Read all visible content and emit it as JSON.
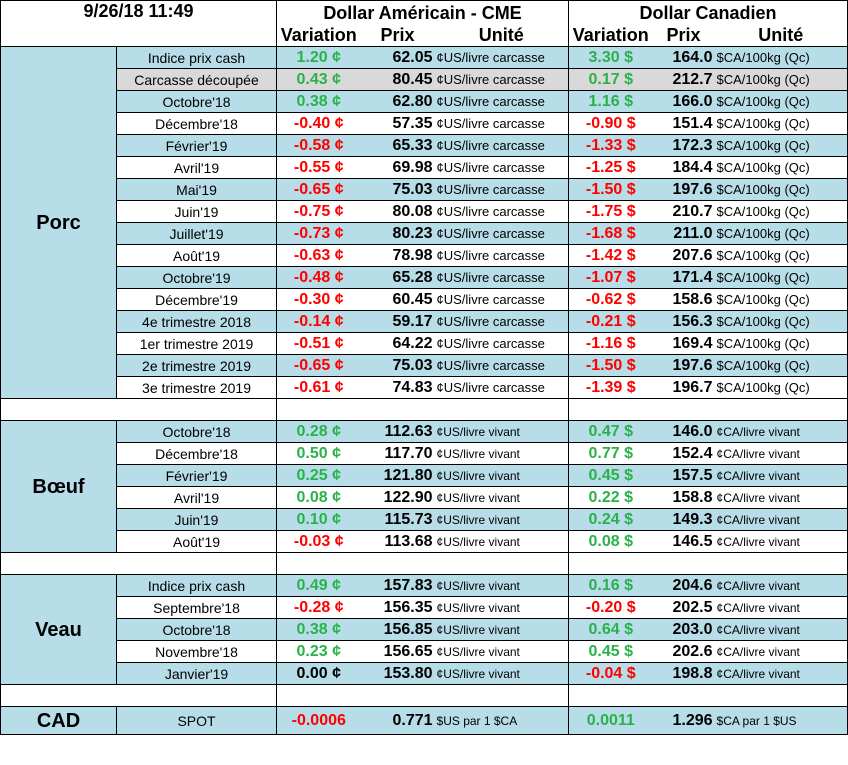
{
  "header": {
    "timestamp": "9/26/18 11:49",
    "usd_title": "Dollar Américain - CME",
    "cad_title": "Dollar Canadien",
    "col_variation": "Variation",
    "col_prix": "Prix",
    "col_unite": "Unité"
  },
  "colors": {
    "positive": "#2ab24a",
    "negative": "#ff0000",
    "stripe": "#b7dde8"
  },
  "sections": [
    {
      "name": "Porc",
      "rows": [
        {
          "label": "Indice prix cash",
          "usd_chg": "1.20 ¢",
          "usd_price": "62.05",
          "usd_unit": "¢US/livre carcasse",
          "cad_chg": "3.30 $",
          "cad_price": "164.0",
          "cad_unit": "$CA/100kg (Qc)"
        },
        {
          "label": "Carcasse découpée",
          "usd_chg": "0.43 ¢",
          "usd_price": "80.45",
          "usd_unit": "¢US/livre carcasse",
          "cad_chg": "0.17 $",
          "cad_price": "212.7",
          "cad_unit": "$CA/100kg (Qc)"
        },
        {
          "label": "Octobre'18",
          "usd_chg": "0.38 ¢",
          "usd_price": "62.80",
          "usd_unit": "¢US/livre carcasse",
          "cad_chg": "1.16 $",
          "cad_price": "166.0",
          "cad_unit": "$CA/100kg (Qc)"
        },
        {
          "label": "Décembre'18",
          "usd_chg": "-0.40 ¢",
          "usd_price": "57.35",
          "usd_unit": "¢US/livre carcasse",
          "cad_chg": "-0.90 $",
          "cad_price": "151.4",
          "cad_unit": "$CA/100kg (Qc)"
        },
        {
          "label": "Février'19",
          "usd_chg": "-0.58 ¢",
          "usd_price": "65.33",
          "usd_unit": "¢US/livre carcasse",
          "cad_chg": "-1.33 $",
          "cad_price": "172.3",
          "cad_unit": "$CA/100kg (Qc)"
        },
        {
          "label": "Avril'19",
          "usd_chg": "-0.55 ¢",
          "usd_price": "69.98",
          "usd_unit": "¢US/livre carcasse",
          "cad_chg": "-1.25 $",
          "cad_price": "184.4",
          "cad_unit": "$CA/100kg (Qc)"
        },
        {
          "label": "Mai'19",
          "usd_chg": "-0.65 ¢",
          "usd_price": "75.03",
          "usd_unit": "¢US/livre carcasse",
          "cad_chg": "-1.50 $",
          "cad_price": "197.6",
          "cad_unit": "$CA/100kg (Qc)"
        },
        {
          "label": "Juin'19",
          "usd_chg": "-0.75 ¢",
          "usd_price": "80.08",
          "usd_unit": "¢US/livre carcasse",
          "cad_chg": "-1.75 $",
          "cad_price": "210.7",
          "cad_unit": "$CA/100kg (Qc)"
        },
        {
          "label": "Juillet'19",
          "usd_chg": "-0.73 ¢",
          "usd_price": "80.23",
          "usd_unit": "¢US/livre carcasse",
          "cad_chg": "-1.68 $",
          "cad_price": "211.0",
          "cad_unit": "$CA/100kg (Qc)"
        },
        {
          "label": "Août'19",
          "usd_chg": "-0.63 ¢",
          "usd_price": "78.98",
          "usd_unit": "¢US/livre carcasse",
          "cad_chg": "-1.42 $",
          "cad_price": "207.6",
          "cad_unit": "$CA/100kg (Qc)"
        },
        {
          "label": "Octobre'19",
          "usd_chg": "-0.48 ¢",
          "usd_price": "65.28",
          "usd_unit": "¢US/livre carcasse",
          "cad_chg": "-1.07 $",
          "cad_price": "171.4",
          "cad_unit": "$CA/100kg (Qc)"
        },
        {
          "label": "Décembre'19",
          "usd_chg": "-0.30 ¢",
          "usd_price": "60.45",
          "usd_unit": "¢US/livre carcasse",
          "cad_chg": "-0.62 $",
          "cad_price": "158.6",
          "cad_unit": "$CA/100kg (Qc)"
        },
        {
          "label": "4e trimestre 2018",
          "usd_chg": "-0.14 ¢",
          "usd_price": "59.17",
          "usd_unit": "¢US/livre carcasse",
          "cad_chg": "-0.21 $",
          "cad_price": "156.3",
          "cad_unit": "$CA/100kg (Qc)"
        },
        {
          "label": "1er trimestre 2019",
          "usd_chg": "-0.51 ¢",
          "usd_price": "64.22",
          "usd_unit": "¢US/livre carcasse",
          "cad_chg": "-1.16 $",
          "cad_price": "169.4",
          "cad_unit": "$CA/100kg (Qc)"
        },
        {
          "label": "2e trimestre 2019",
          "usd_chg": "-0.65 ¢",
          "usd_price": "75.03",
          "usd_unit": "¢US/livre carcasse",
          "cad_chg": "-1.50 $",
          "cad_price": "197.6",
          "cad_unit": "$CA/100kg (Qc)"
        },
        {
          "label": "3e trimestre 2019",
          "usd_chg": "-0.61 ¢",
          "usd_price": "74.83",
          "usd_unit": "¢US/livre carcasse",
          "cad_chg": "-1.39 $",
          "cad_price": "196.7",
          "cad_unit": "$CA/100kg (Qc)"
        }
      ]
    },
    {
      "name": "Bœuf",
      "rows": [
        {
          "label": "Octobre'18",
          "usd_chg": "0.28 ¢",
          "usd_price": "112.63",
          "usd_unit": "¢US/livre vivant",
          "cad_chg": "0.47 $",
          "cad_price": "146.0",
          "cad_unit": "¢CA/livre vivant"
        },
        {
          "label": "Décembre'18",
          "usd_chg": "0.50 ¢",
          "usd_price": "117.70",
          "usd_unit": "¢US/livre vivant",
          "cad_chg": "0.77 $",
          "cad_price": "152.4",
          "cad_unit": "¢CA/livre vivant"
        },
        {
          "label": "Février'19",
          "usd_chg": "0.25 ¢",
          "usd_price": "121.80",
          "usd_unit": "¢US/livre vivant",
          "cad_chg": "0.45 $",
          "cad_price": "157.5",
          "cad_unit": "¢CA/livre vivant"
        },
        {
          "label": "Avril'19",
          "usd_chg": "0.08 ¢",
          "usd_price": "122.90",
          "usd_unit": "¢US/livre vivant",
          "cad_chg": "0.22 $",
          "cad_price": "158.8",
          "cad_unit": "¢CA/livre vivant"
        },
        {
          "label": "Juin'19",
          "usd_chg": "0.10 ¢",
          "usd_price": "115.73",
          "usd_unit": "¢US/livre vivant",
          "cad_chg": "0.24 $",
          "cad_price": "149.3",
          "cad_unit": "¢CA/livre vivant"
        },
        {
          "label": "Août'19",
          "usd_chg": "-0.03 ¢",
          "usd_price": "113.68",
          "usd_unit": "¢US/livre vivant",
          "cad_chg": "0.08 $",
          "cad_price": "146.5",
          "cad_unit": "¢CA/livre vivant"
        }
      ]
    },
    {
      "name": "Veau",
      "rows": [
        {
          "label": "Indice prix cash",
          "usd_chg": "0.49 ¢",
          "usd_price": "157.83",
          "usd_unit": "¢US/livre vivant",
          "cad_chg": "0.16 $",
          "cad_price": "204.6",
          "cad_unit": "¢CA/livre vivant"
        },
        {
          "label": "Septembre'18",
          "usd_chg": "-0.28 ¢",
          "usd_price": "156.35",
          "usd_unit": "¢US/livre vivant",
          "cad_chg": "-0.20 $",
          "cad_price": "202.5",
          "cad_unit": "¢CA/livre vivant"
        },
        {
          "label": "Octobre'18",
          "usd_chg": "0.38 ¢",
          "usd_price": "156.85",
          "usd_unit": "¢US/livre vivant",
          "cad_chg": "0.64 $",
          "cad_price": "203.0",
          "cad_unit": "¢CA/livre vivant"
        },
        {
          "label": "Novembre'18",
          "usd_chg": "0.23 ¢",
          "usd_price": "156.65",
          "usd_unit": "¢US/livre vivant",
          "cad_chg": "0.45 $",
          "cad_price": "202.6",
          "cad_unit": "¢CA/livre vivant"
        },
        {
          "label": "Janvier'19",
          "usd_chg": "0.00 ¢",
          "usd_price": "153.80",
          "usd_unit": "¢US/livre vivant",
          "cad_chg": "-0.04 $",
          "cad_price": "198.8",
          "cad_unit": "¢CA/livre vivant"
        }
      ]
    }
  ],
  "cad": {
    "name": "CAD",
    "label": "SPOT",
    "usd_chg": "-0.0006",
    "usd_price": "0.771",
    "usd_unit": "$US par 1 $CA",
    "cad_chg": "0.0011",
    "cad_price": "1.296",
    "cad_unit": "$CA par 1 $US"
  }
}
